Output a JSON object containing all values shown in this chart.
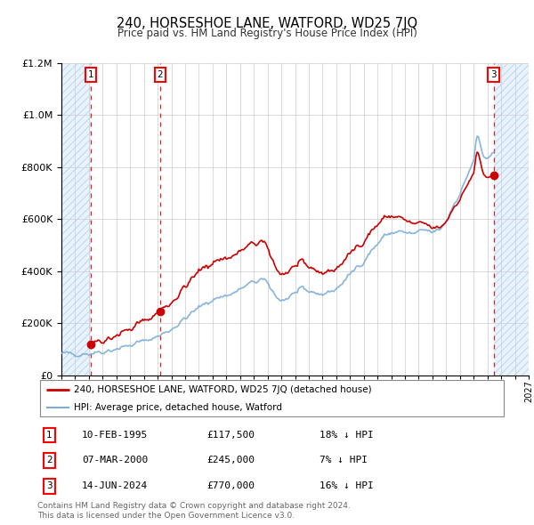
{
  "title": "240, HORSESHOE LANE, WATFORD, WD25 7JQ",
  "subtitle": "Price paid vs. HM Land Registry's House Price Index (HPI)",
  "legend_line1": "240, HORSESHOE LANE, WATFORD, WD25 7JQ (detached house)",
  "legend_line2": "HPI: Average price, detached house, Watford",
  "footer1": "Contains HM Land Registry data © Crown copyright and database right 2024.",
  "footer2": "This data is licensed under the Open Government Licence v3.0.",
  "transactions": [
    {
      "num": 1,
      "date": "10-FEB-1995",
      "price": 117500,
      "pct": "18%",
      "dir": "↓",
      "year": 1995.12
    },
    {
      "num": 2,
      "date": "07-MAR-2000",
      "price": 245000,
      "pct": "7%",
      "dir": "↓",
      "year": 2000.18
    },
    {
      "num": 3,
      "date": "14-JUN-2024",
      "price": 770000,
      "pct": "16%",
      "dir": "↓",
      "year": 2024.45
    }
  ],
  "hpi_color": "#7aaddb",
  "price_color": "#cc0000",
  "ylim": [
    0,
    1200000
  ],
  "xlim_start": 1993.0,
  "xlim_end": 2027.0,
  "hatch_left_end": 1995.12,
  "hatch_right_start": 2024.45
}
